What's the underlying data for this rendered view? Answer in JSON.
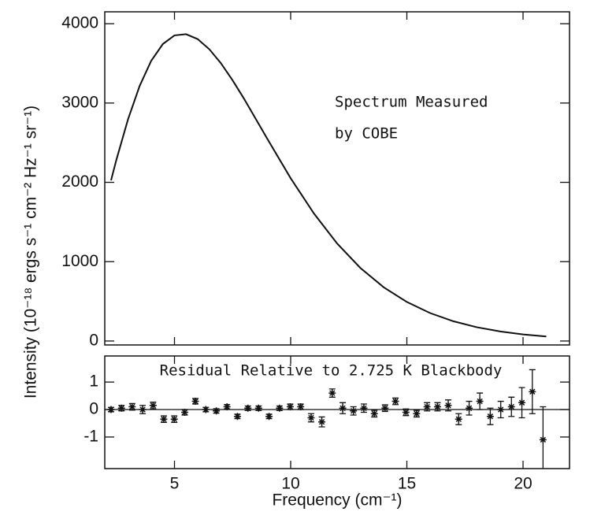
{
  "chart_data": [
    {
      "type": "line",
      "ylabel": "Intensity (10⁻¹⁸ ergs s⁻¹ cm⁻² Hz⁻¹ sr⁻¹)",
      "annotation": [
        "Spectrum Measured",
        "by COBE"
      ],
      "x": [
        2.27,
        2.5,
        3,
        3.5,
        4,
        4.5,
        5,
        5.5,
        6,
        6.5,
        7,
        7.5,
        8,
        9,
        10,
        11,
        12,
        13,
        14,
        15,
        16,
        17,
        18,
        19,
        20,
        21
      ],
      "values": [
        2025,
        2284,
        2794,
        3215,
        3533,
        3744,
        3853,
        3868,
        3806,
        3678,
        3501,
        3287,
        3051,
        2546,
        2052,
        1608,
        1229,
        921,
        678,
        492,
        352,
        249,
        174,
        121,
        83,
        57
      ],
      "color": "#111111",
      "xlim": [
        2,
        22
      ],
      "ylim": [
        -50,
        4150
      ],
      "yticks": [
        0,
        1000,
        2000,
        3000,
        4000
      ]
    },
    {
      "type": "scatter",
      "title": "Residual Relative to 2.725 K Blackbody",
      "xlabel": "Frequency (cm⁻¹)",
      "x": [
        2.27,
        2.72,
        3.18,
        3.63,
        4.08,
        4.54,
        4.99,
        5.44,
        5.9,
        6.35,
        6.8,
        7.26,
        7.71,
        8.16,
        8.62,
        9.07,
        9.52,
        9.98,
        10.43,
        10.88,
        11.34,
        11.79,
        12.24,
        12.7,
        13.15,
        13.6,
        14.06,
        14.51,
        14.96,
        15.42,
        15.87,
        16.32,
        16.78,
        17.23,
        17.68,
        18.14,
        18.59,
        19.04,
        19.5,
        19.95,
        20.4,
        20.86
      ],
      "values": [
        0,
        0.05,
        0.1,
        0,
        0.15,
        -0.35,
        -0.35,
        -0.1,
        0.3,
        0,
        -0.05,
        0.1,
        -0.25,
        0.05,
        0.05,
        -0.25,
        0.05,
        0.1,
        0.1,
        -0.3,
        -0.45,
        0.6,
        0.05,
        -0.05,
        0.05,
        -0.15,
        0.05,
        0.3,
        -0.1,
        -0.15,
        0.1,
        0.1,
        0.15,
        -0.35,
        0.05,
        0.3,
        -0.25,
        0,
        0.1,
        0.25,
        0.65,
        -1.1
      ],
      "errors": [
        0.08,
        0.1,
        0.12,
        0.15,
        0.12,
        0.12,
        0.12,
        0.1,
        0.1,
        0.08,
        0.08,
        0.08,
        0.08,
        0.08,
        0.08,
        0.08,
        0.08,
        0.1,
        0.1,
        0.15,
        0.18,
        0.15,
        0.2,
        0.15,
        0.15,
        0.12,
        0.12,
        0.12,
        0.12,
        0.12,
        0.15,
        0.15,
        0.2,
        0.2,
        0.25,
        0.3,
        0.3,
        0.3,
        0.35,
        0.55,
        0.8,
        1.2
      ],
      "reference_line": 0,
      "color": "#111111",
      "xlim": [
        2,
        22
      ],
      "ylim": [
        -2.15,
        1.95
      ],
      "xticks": [
        5,
        10,
        15,
        20
      ],
      "yticks": [
        -1,
        0,
        1
      ]
    }
  ]
}
